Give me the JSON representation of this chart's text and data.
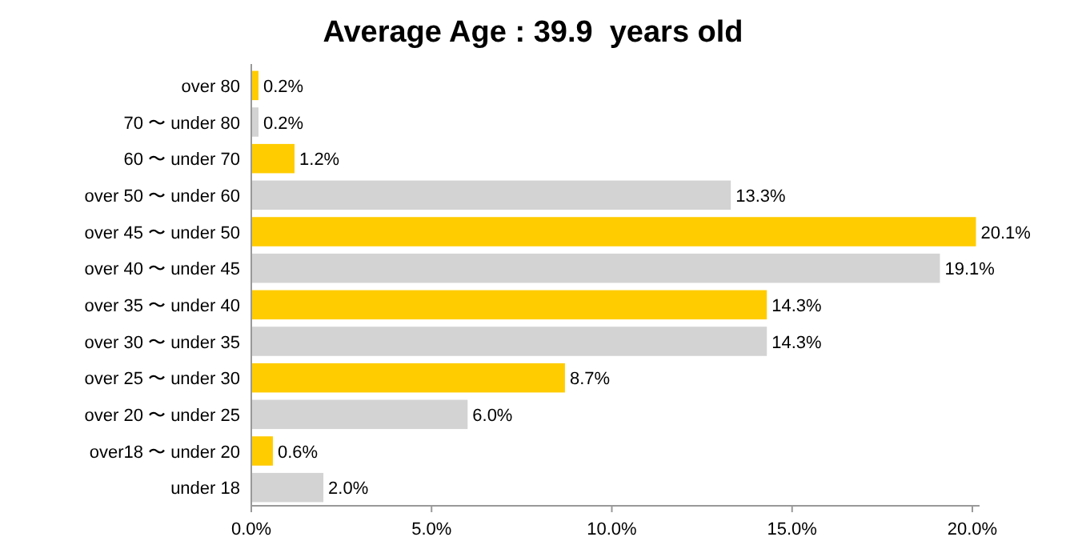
{
  "chart_data": {
    "type": "bar",
    "orientation": "horizontal",
    "title": "Average Age : 39.9  years old",
    "categories": [
      "over 80",
      "70 〜 under 80",
      "60 〜 under 70",
      "over 50 〜 under 60",
      "over 45 〜 under 50",
      "over 40 〜 under 45",
      "over 35 〜 under 40",
      "over 30 〜 under 35",
      "over 25 〜 under 30",
      "over 20 〜 under 25",
      "over18 〜 under 20",
      "under 18"
    ],
    "values": [
      0.2,
      0.2,
      1.2,
      13.3,
      20.1,
      19.1,
      14.3,
      14.3,
      8.7,
      6.0,
      0.6,
      2.0
    ],
    "colors": [
      "#ffcc00",
      "#d3d3d3",
      "#ffcc00",
      "#d3d3d3",
      "#ffcc00",
      "#d3d3d3",
      "#ffcc00",
      "#d3d3d3",
      "#ffcc00",
      "#d3d3d3",
      "#ffcc00",
      "#d3d3d3"
    ],
    "value_labels": [
      "0.2%",
      "0.2%",
      "1.2%",
      "13.3%",
      "20.1%",
      "19.1%",
      "14.3%",
      "14.3%",
      "8.7%",
      "6.0%",
      "0.6%",
      "2.0%"
    ],
    "xlim": [
      0,
      20.2
    ],
    "xticks": [
      {
        "value": 0,
        "label": "0.0%"
      },
      {
        "value": 5,
        "label": "5.0%"
      },
      {
        "value": 10,
        "label": "10.0%"
      },
      {
        "value": 15,
        "label": "15.0%"
      },
      {
        "value": 20,
        "label": "20.0%"
      }
    ],
    "grid": false
  }
}
